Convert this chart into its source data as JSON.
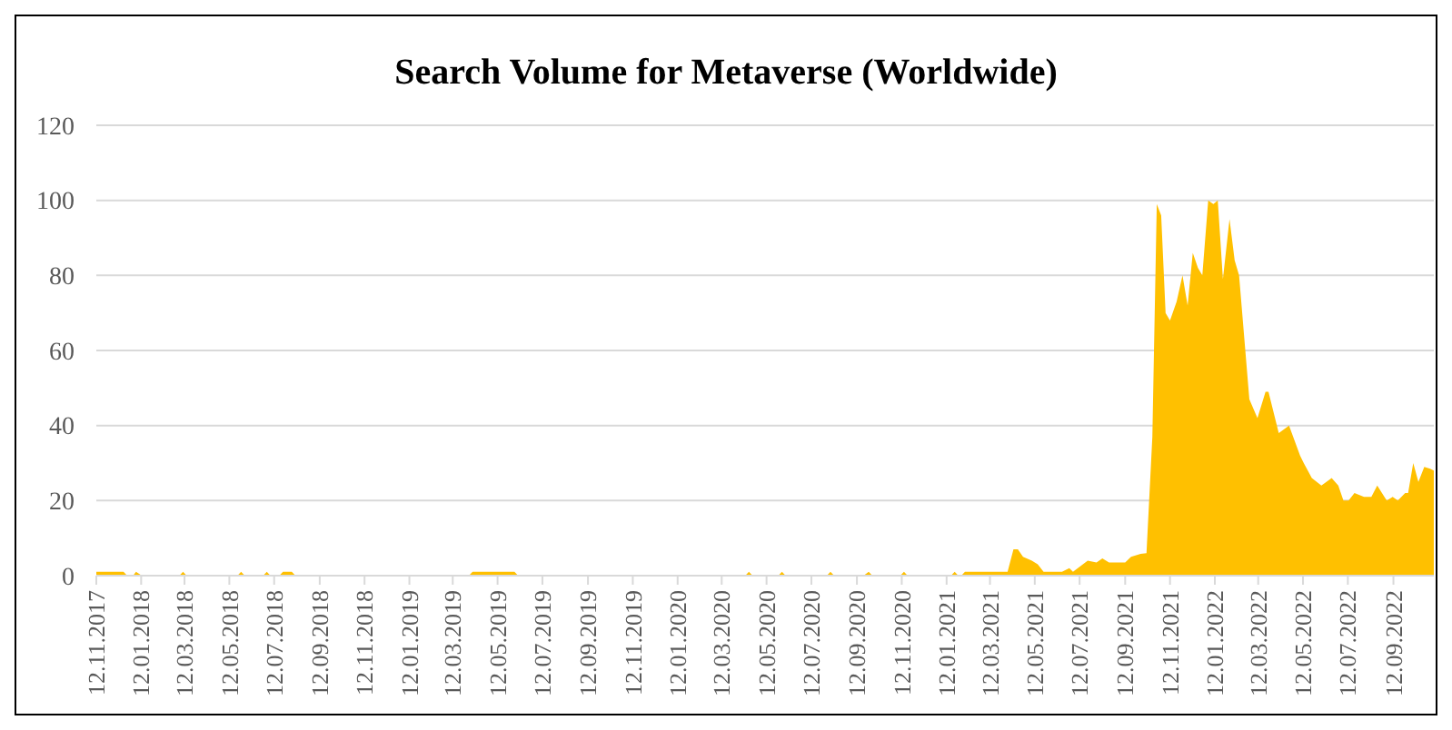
{
  "chart_data": {
    "type": "area",
    "title": "Search Volume for Metaverse (Worldwide)",
    "x": [
      "2017-11-12",
      "2017-12-19",
      "2017-12-24",
      "2018-01-01",
      "2018-01-05",
      "2018-01-13",
      "2018-03-05",
      "2018-03-10",
      "2018-03-15",
      "2018-05-23",
      "2018-05-28",
      "2018-06-02",
      "2018-06-27",
      "2018-07-02",
      "2018-07-07",
      "2018-07-19",
      "2018-07-24",
      "2018-08-05",
      "2018-08-10",
      "2019-04-03",
      "2019-04-08",
      "2019-06-04",
      "2019-06-09",
      "2020-04-13",
      "2020-04-18",
      "2020-04-23",
      "2020-05-28",
      "2020-06-02",
      "2020-06-07",
      "2020-08-02",
      "2020-08-07",
      "2020-08-12",
      "2020-09-21",
      "2020-09-28",
      "2020-10-03",
      "2020-11-10",
      "2020-11-15",
      "2020-11-20",
      "2021-01-18",
      "2021-01-23",
      "2021-01-28",
      "2021-02-01",
      "2021-02-06",
      "2021-04-05",
      "2021-04-13",
      "2021-04-19",
      "2021-04-26",
      "2021-05-08",
      "2021-05-16",
      "2021-05-24",
      "2021-06-18",
      "2021-06-28",
      "2021-07-03",
      "2021-07-23",
      "2021-08-04",
      "2021-08-12",
      "2021-08-21",
      "2021-09-12",
      "2021-09-20",
      "2021-10-03",
      "2021-10-11",
      "2021-10-19",
      "2021-10-25",
      "2021-10-31",
      "2021-11-06",
      "2021-11-12",
      "2021-11-21",
      "2021-11-29",
      "2021-12-06",
      "2021-12-13",
      "2021-12-20",
      "2021-12-26",
      "2022-01-03",
      "2022-01-10",
      "2022-01-16",
      "2022-01-23",
      "2022-02-01",
      "2022-02-08",
      "2022-02-14",
      "2022-02-28",
      "2022-03-11",
      "2022-03-22",
      "2022-03-26",
      "2022-04-09",
      "2022-04-23",
      "2022-05-08",
      "2022-05-13",
      "2022-05-24",
      "2022-06-06",
      "2022-06-20",
      "2022-06-29",
      "2022-07-06",
      "2022-07-13",
      "2022-07-21",
      "2022-08-03",
      "2022-08-13",
      "2022-08-21",
      "2022-09-03",
      "2022-09-11",
      "2022-09-18",
      "2022-09-28",
      "2022-10-02",
      "2022-10-09",
      "2022-10-16",
      "2022-10-24",
      "2022-11-01",
      "2022-11-06"
    ],
    "values": [
      1,
      1,
      0,
      0,
      1,
      0,
      0,
      1,
      0,
      0,
      1,
      0,
      0,
      1,
      0,
      0,
      1,
      1,
      0,
      0,
      1,
      1,
      0,
      0,
      1,
      0,
      0,
      1,
      0,
      0,
      1,
      0,
      0,
      1,
      0,
      0,
      1,
      0,
      0,
      1,
      0,
      0,
      1,
      1,
      7,
      7,
      5,
      4,
      3,
      1,
      1,
      2,
      1,
      4,
      3.5,
      4.6,
      3.5,
      3.5,
      5,
      5.8,
      6,
      37,
      99,
      96,
      70,
      68,
      73,
      80,
      72,
      86,
      82,
      80,
      100,
      99,
      100,
      79,
      95,
      84,
      80,
      47,
      42,
      49,
      49,
      38,
      40,
      32,
      30,
      26,
      24,
      26,
      24,
      20,
      20,
      22,
      21,
      21,
      24,
      20,
      21,
      20,
      22,
      22,
      30,
      25,
      29,
      28.5,
      28
    ],
    "color": "#ffc000",
    "xlim": [
      "2017-11-12",
      "2022-11-06"
    ],
    "xticks": [
      {
        "value": "2017-11-12",
        "label": "12.11.2017"
      },
      {
        "value": "2018-01-12",
        "label": "12.01.2018"
      },
      {
        "value": "2018-03-12",
        "label": "12.03.2018"
      },
      {
        "value": "2018-05-12",
        "label": "12.05.2018"
      },
      {
        "value": "2018-07-12",
        "label": "12.07.2018"
      },
      {
        "value": "2018-09-12",
        "label": "12.09.2018"
      },
      {
        "value": "2018-11-12",
        "label": "12.11.2018"
      },
      {
        "value": "2019-01-12",
        "label": "12.01.2019"
      },
      {
        "value": "2019-03-12",
        "label": "12.03.2019"
      },
      {
        "value": "2019-05-12",
        "label": "12.05.2019"
      },
      {
        "value": "2019-07-12",
        "label": "12.07.2019"
      },
      {
        "value": "2019-09-12",
        "label": "12.09.2019"
      },
      {
        "value": "2019-11-12",
        "label": "12.11.2019"
      },
      {
        "value": "2020-01-12",
        "label": "12.01.2020"
      },
      {
        "value": "2020-03-12",
        "label": "12.03.2020"
      },
      {
        "value": "2020-05-12",
        "label": "12.05.2020"
      },
      {
        "value": "2020-07-12",
        "label": "12.07.2020"
      },
      {
        "value": "2020-09-12",
        "label": "12.09.2020"
      },
      {
        "value": "2020-11-12",
        "label": "12.11.2020"
      },
      {
        "value": "2021-01-12",
        "label": "12.01.2021"
      },
      {
        "value": "2021-03-12",
        "label": "12.03.2021"
      },
      {
        "value": "2021-05-12",
        "label": "12.05.2021"
      },
      {
        "value": "2021-07-12",
        "label": "12.07.2021"
      },
      {
        "value": "2021-09-12",
        "label": "12.09.2021"
      },
      {
        "value": "2021-11-12",
        "label": "12.11.2021"
      },
      {
        "value": "2022-01-12",
        "label": "12.01.2022"
      },
      {
        "value": "2022-03-12",
        "label": "12.03.2022"
      },
      {
        "value": "2022-05-12",
        "label": "12.05.2022"
      },
      {
        "value": "2022-07-12",
        "label": "12.07.2022"
      },
      {
        "value": "2022-09-12",
        "label": "12.09.2022"
      }
    ],
    "ylim": [
      0,
      120
    ],
    "yticks": [
      0,
      20,
      40,
      60,
      80,
      100,
      120
    ],
    "grid": "y"
  }
}
